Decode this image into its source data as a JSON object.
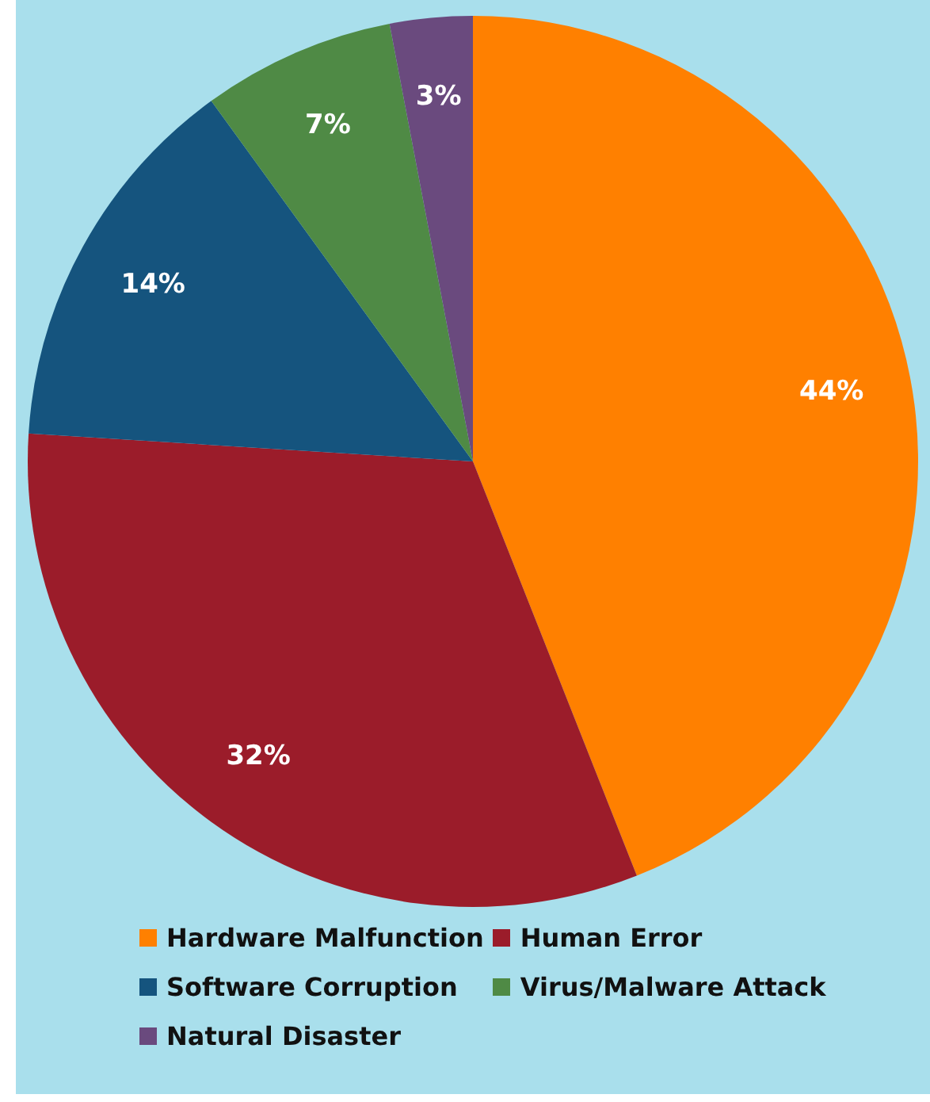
{
  "chart_data": {
    "type": "pie",
    "categories": [
      "Hardware Malfunction",
      "Human Error",
      "Software Corruption",
      "Virus/Malware Attack",
      "Natural Disaster"
    ],
    "values": [
      44,
      32,
      14,
      7,
      3
    ],
    "colors": [
      "#ff8000",
      "#9b1c2a",
      "#15547e",
      "#4f8a45",
      "#6a4a7e"
    ],
    "value_labels": [
      "44%",
      "32%",
      "14%",
      "7%",
      "3%"
    ],
    "legend": "bottom"
  }
}
